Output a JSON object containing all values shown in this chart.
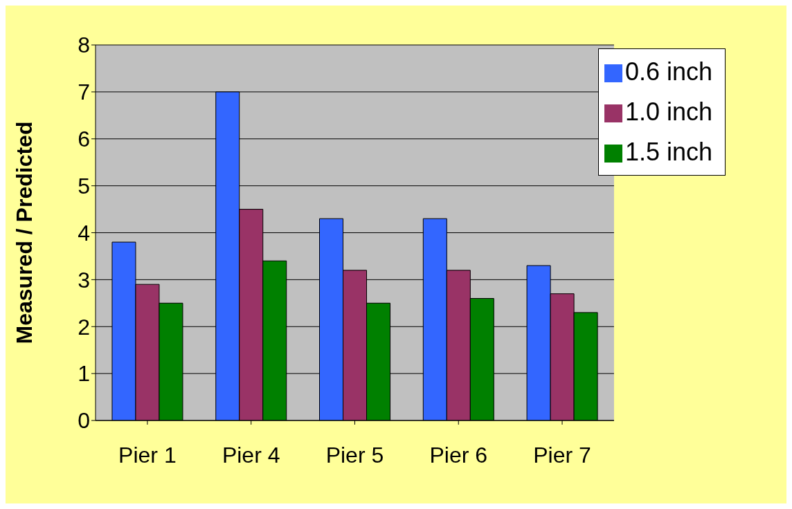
{
  "chart_data": {
    "type": "bar",
    "ylabel": "Measured / Predicted",
    "categories": [
      "Pier 1",
      "Pier 4",
      "Pier 5",
      "Pier 6",
      "Pier 7"
    ],
    "series": [
      {
        "name": "0.6 inch",
        "color": "#3366ff",
        "values": [
          3.8,
          7.0,
          4.3,
          4.3,
          3.3
        ]
      },
      {
        "name": "1.0 inch",
        "color": "#993366",
        "values": [
          2.9,
          4.5,
          3.2,
          3.2,
          2.7
        ]
      },
      {
        "name": "1.5 inch",
        "color": "#008000",
        "values": [
          2.5,
          3.4,
          2.5,
          2.6,
          2.3
        ]
      }
    ],
    "ylim": [
      0,
      8
    ],
    "yticks": [
      0,
      1,
      2,
      3,
      4,
      5,
      6,
      7,
      8
    ],
    "grid": "y",
    "legend": "top right"
  }
}
